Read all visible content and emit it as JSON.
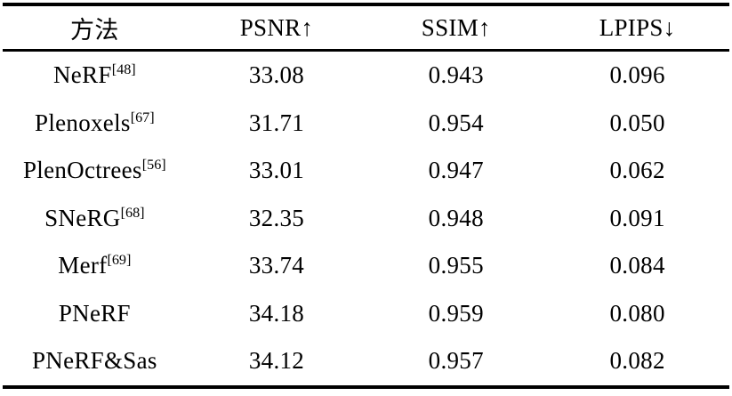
{
  "table": {
    "headers": [
      {
        "label": "方法"
      },
      {
        "label": "PSNR↑"
      },
      {
        "label": "SSIM↑"
      },
      {
        "label": "LPIPS↓"
      }
    ],
    "rows": [
      {
        "method": "NeRF",
        "ref": "[48]",
        "psnr": "33.08",
        "ssim": "0.943",
        "lpips": "0.096"
      },
      {
        "method": "Plenoxels",
        "ref": "[67]",
        "psnr": "31.71",
        "ssim": "0.954",
        "lpips": "0.050"
      },
      {
        "method": "PlenOctrees",
        "ref": "[56]",
        "psnr": "33.01",
        "ssim": "0.947",
        "lpips": "0.062"
      },
      {
        "method": "SNeRG",
        "ref": "[68]",
        "psnr": "32.35",
        "ssim": "0.948",
        "lpips": "0.091"
      },
      {
        "method": "Merf",
        "ref": "[69]",
        "psnr": "33.74",
        "ssim": "0.955",
        "lpips": "0.084"
      },
      {
        "method": "PNeRF",
        "ref": "",
        "psnr": "34.18",
        "ssim": "0.959",
        "lpips": "0.080"
      },
      {
        "method": "PNeRF&Sas",
        "ref": "",
        "psnr": "34.12",
        "ssim": "0.957",
        "lpips": "0.082"
      }
    ]
  },
  "colors": {
    "background": "#ffffff",
    "text": "#000000",
    "rule": "#000000"
  },
  "chart_data": {
    "type": "table",
    "columns": [
      "方法",
      "PSNR↑",
      "SSIM↑",
      "LPIPS↓"
    ],
    "rows": [
      [
        "NeRF[48]",
        33.08,
        0.943,
        0.096
      ],
      [
        "Plenoxels[67]",
        31.71,
        0.954,
        0.05
      ],
      [
        "PlenOctrees[56]",
        33.01,
        0.947,
        0.062
      ],
      [
        "SNeRG[68]",
        32.35,
        0.948,
        0.091
      ],
      [
        "Merf[69]",
        33.74,
        0.955,
        0.084
      ],
      [
        "PNeRF",
        34.18,
        0.959,
        0.08
      ],
      [
        "PNeRF&Sas",
        34.12,
        0.957,
        0.082
      ]
    ]
  }
}
